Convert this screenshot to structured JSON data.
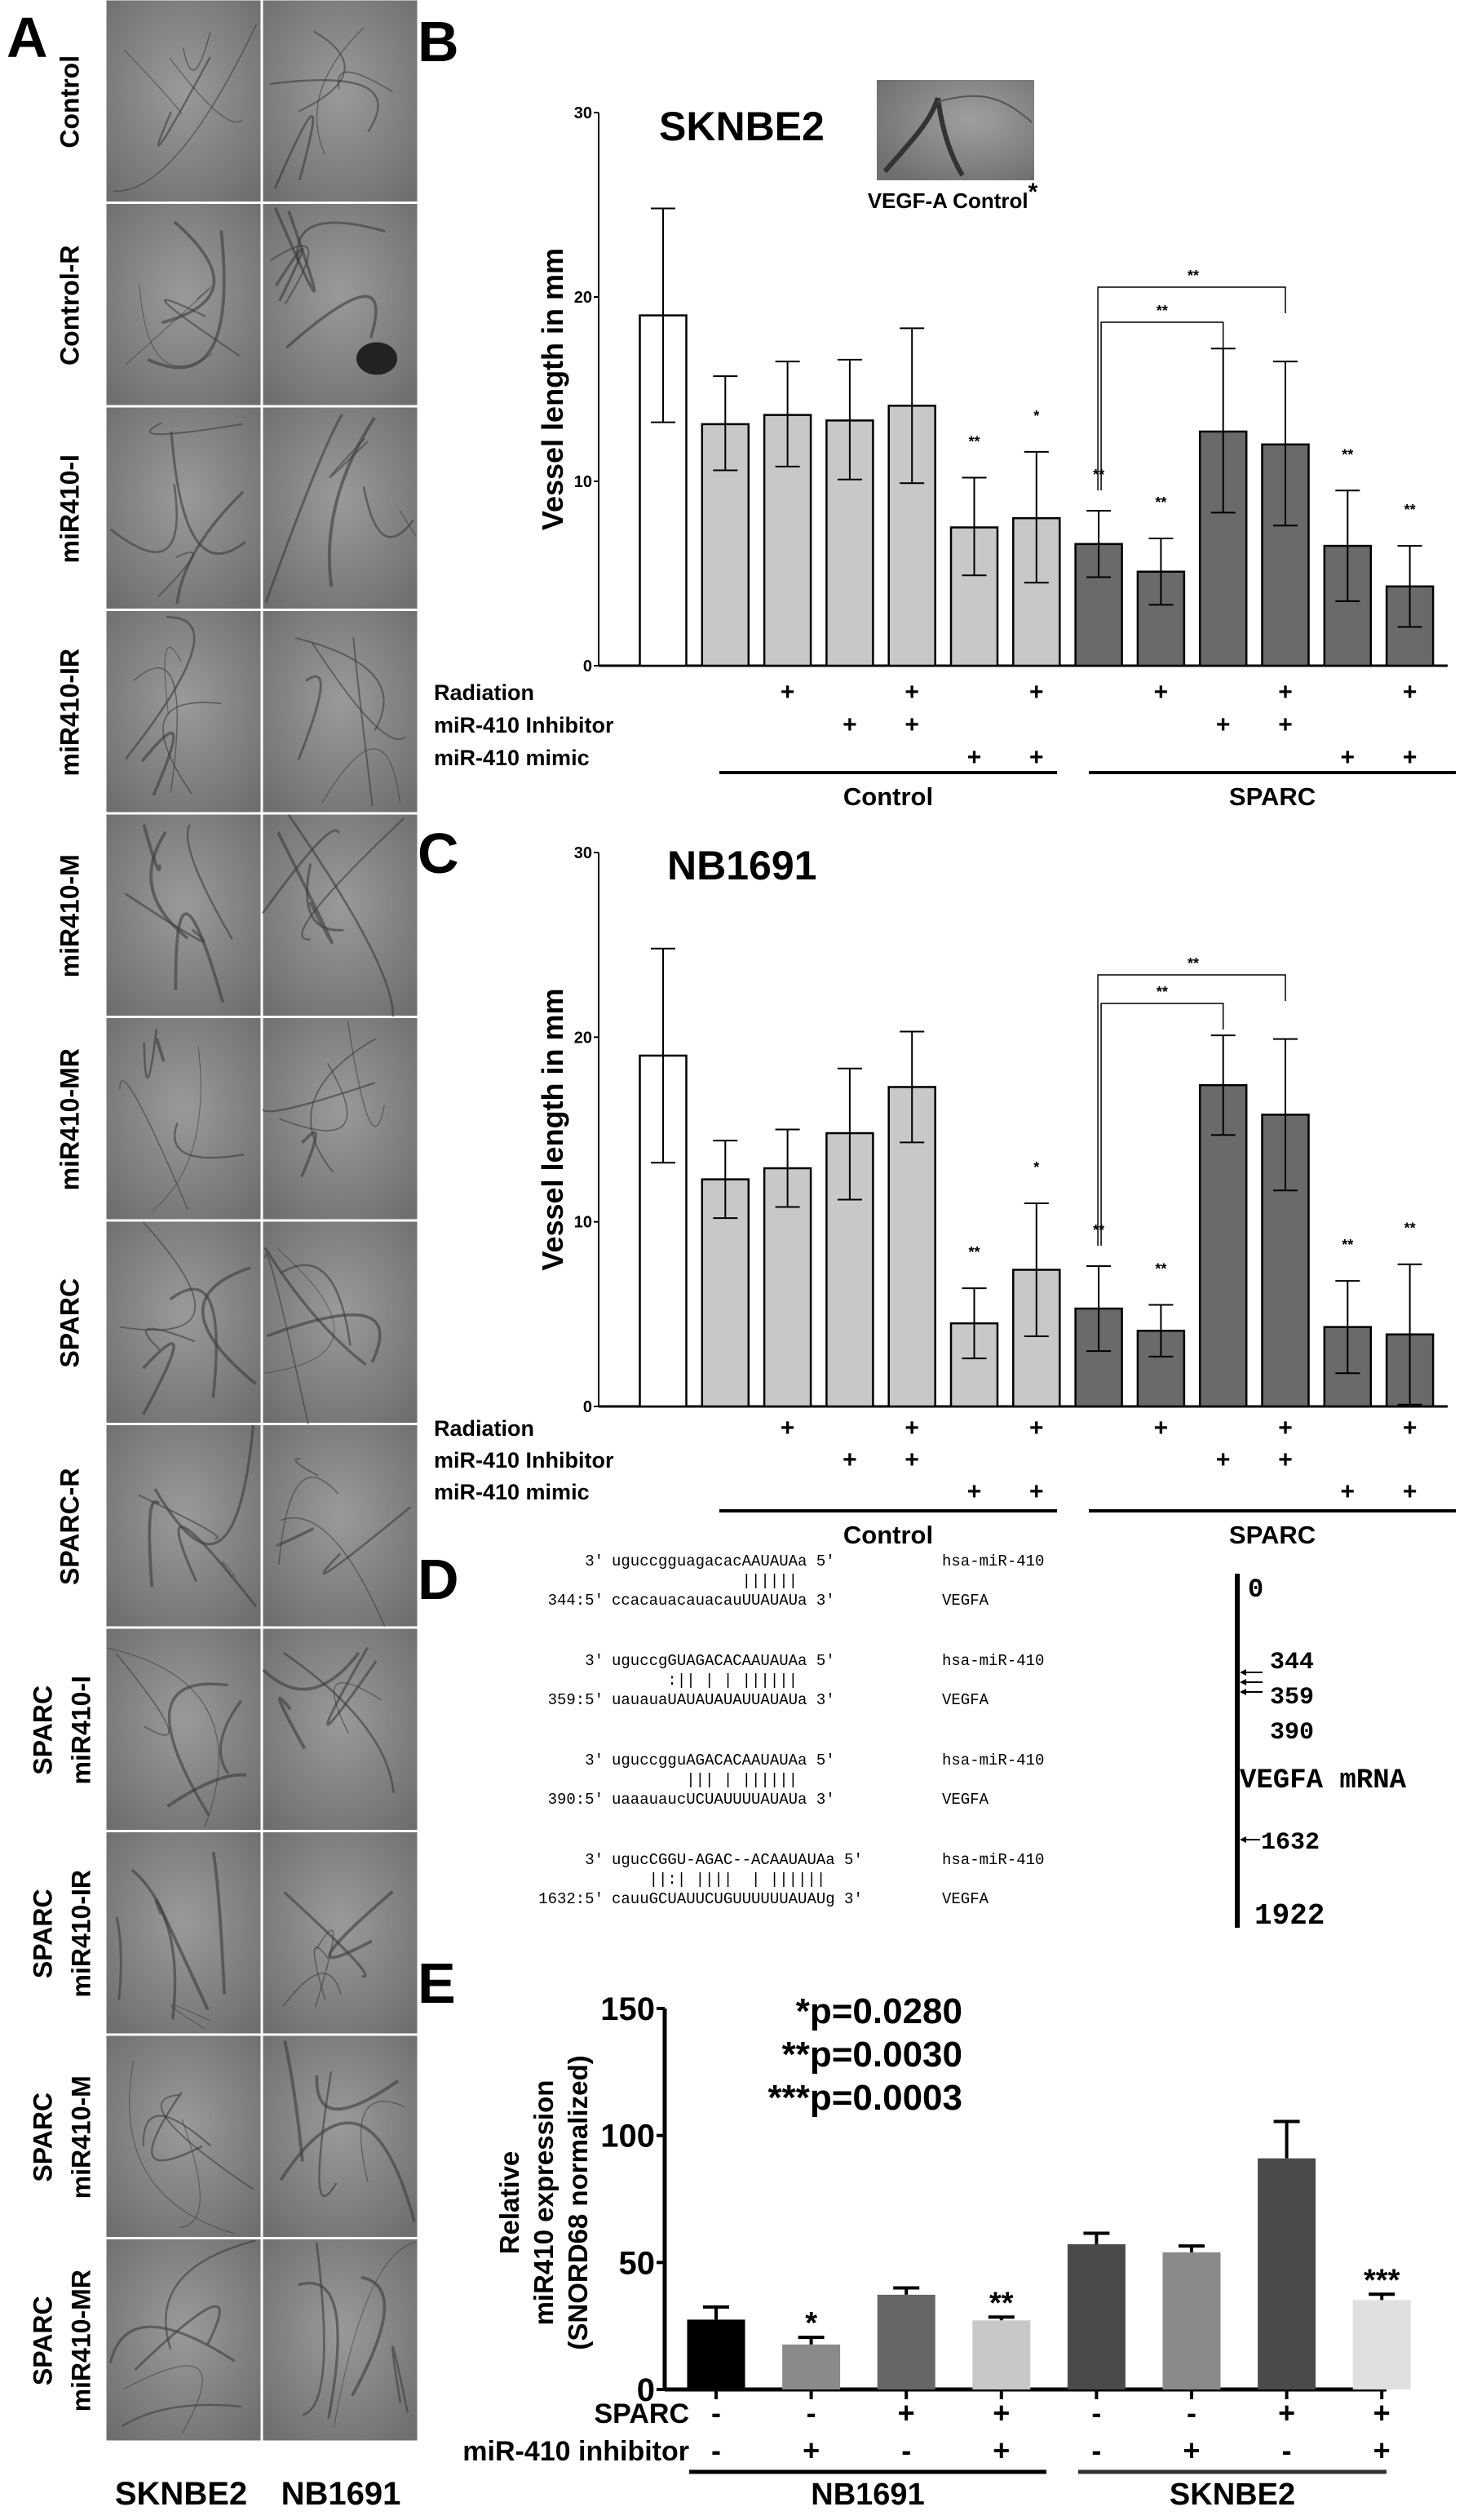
{
  "panel_letters": {
    "a": "A",
    "b": "B",
    "c": "C",
    "d": "D",
    "e": "E"
  },
  "panel_a": {
    "rows": [
      [
        "Control"
      ],
      [
        "Control-R"
      ],
      [
        "miR410-I"
      ],
      [
        "miR410-IR"
      ],
      [
        "miR410-M"
      ],
      [
        "miR410-MR"
      ],
      [
        "SPARC"
      ],
      [
        "SPARC-R"
      ],
      [
        "SPARC",
        "miR410-I"
      ],
      [
        "SPARC",
        "miR410-IR"
      ],
      [
        "SPARC",
        "miR410-M"
      ],
      [
        "SPARC",
        "miR410-MR"
      ]
    ],
    "columns": [
      "SKNBE2",
      "NB1691"
    ]
  },
  "treatment_rows": [
    "Radiation",
    "miR-410 Inhibitor",
    "miR-410 mimic"
  ],
  "groups": [
    "Control",
    "SPARC"
  ],
  "chart_data": [
    {
      "type": "bar",
      "title": "SKNBE2",
      "inset_caption": "VEGF-A Control",
      "inset_mark": "*",
      "ylabel": "Vessel length in mm",
      "ylim": [
        0,
        30
      ],
      "yticks": [
        "0",
        "10",
        "20",
        "30"
      ],
      "values": [
        19.0,
        13.1,
        13.6,
        13.3,
        14.1,
        7.5,
        8.0,
        6.6,
        5.1,
        12.7,
        12.0,
        6.5,
        4.3
      ],
      "err_high": [
        24.8,
        15.7,
        16.5,
        16.6,
        18.3,
        10.2,
        11.6,
        8.4,
        6.9,
        17.2,
        16.5,
        9.5,
        6.5
      ],
      "err_low": [
        13.2,
        10.6,
        10.8,
        10.1,
        9.9,
        4.9,
        4.5,
        4.8,
        3.3,
        8.3,
        7.6,
        3.5,
        2.1
      ],
      "colors": [
        "#ffffff",
        "#c8c8c8",
        "#c8c8c8",
        "#c8c8c8",
        "#c8c8c8",
        "#c8c8c8",
        "#c8c8c8",
        "#6a6a6a",
        "#6a6a6a",
        "#6a6a6a",
        "#6a6a6a",
        "#6a6a6a",
        "#6a6a6a"
      ],
      "significance": [
        "",
        "",
        "",
        "",
        "",
        "**",
        "*",
        "**",
        "**",
        "",
        "",
        "**",
        "**"
      ],
      "radiation": [
        "",
        "",
        "+",
        "",
        "+",
        "",
        "+",
        "",
        "+",
        "",
        "+",
        "",
        "+"
      ],
      "inhibitor": [
        "",
        "",
        "",
        "+",
        "+",
        "",
        "",
        "",
        "",
        "+",
        "+",
        "",
        ""
      ],
      "mimic": [
        "",
        "",
        "",
        "",
        "",
        "+",
        "+",
        "",
        "",
        "",
        "",
        "+",
        "+"
      ],
      "brackets": [
        {
          "from": 7,
          "to": 9,
          "label": "**"
        },
        {
          "from": 7,
          "to": 10,
          "label": "**"
        }
      ]
    },
    {
      "type": "bar",
      "title": "NB1691",
      "ylabel": "Vessel length in mm",
      "ylim": [
        0,
        30
      ],
      "yticks": [
        "0",
        "10",
        "20",
        "30"
      ],
      "values": [
        19.0,
        12.3,
        12.9,
        14.8,
        17.3,
        4.5,
        7.4,
        5.3,
        4.1,
        17.4,
        15.8,
        4.3,
        3.9
      ],
      "err_high": [
        24.8,
        14.4,
        15.0,
        18.3,
        20.3,
        6.4,
        11.0,
        7.6,
        5.5,
        20.1,
        19.9,
        6.8,
        7.7
      ],
      "err_low": [
        13.2,
        10.2,
        10.8,
        11.2,
        14.3,
        2.6,
        3.8,
        3.0,
        2.7,
        14.7,
        11.7,
        1.8,
        0.1
      ],
      "colors": [
        "#ffffff",
        "#c8c8c8",
        "#c8c8c8",
        "#c8c8c8",
        "#c8c8c8",
        "#c8c8c8",
        "#c8c8c8",
        "#6a6a6a",
        "#6a6a6a",
        "#6a6a6a",
        "#6a6a6a",
        "#6a6a6a",
        "#6a6a6a"
      ],
      "significance": [
        "",
        "",
        "",
        "",
        "",
        "**",
        "*",
        "**",
        "**",
        "",
        "",
        "**",
        "**"
      ],
      "radiation": [
        "",
        "",
        "+",
        "",
        "+",
        "",
        "+",
        "",
        "+",
        "",
        "+",
        "",
        "+"
      ],
      "inhibitor": [
        "",
        "",
        "",
        "+",
        "+",
        "",
        "",
        "",
        "",
        "+",
        "+",
        "",
        ""
      ],
      "mimic": [
        "",
        "",
        "",
        "",
        "",
        "+",
        "+",
        "",
        "",
        "",
        "",
        "+",
        "+"
      ],
      "brackets": [
        {
          "from": 7,
          "to": 9,
          "label": "**"
        },
        {
          "from": 7,
          "to": 10,
          "label": "**"
        }
      ]
    },
    {
      "type": "bar",
      "ylabel_lines": [
        "Relative",
        "miR410 expression",
        "(SNORD68 normalized)"
      ],
      "ylim": [
        0,
        150
      ],
      "yticks": [
        "0",
        "50",
        "100",
        "150"
      ],
      "values": [
        27.5,
        17.7,
        37.3,
        27.2,
        57.2,
        54.0,
        91.0,
        35.2
      ],
      "err_high": [
        32.5,
        20.5,
        40.0,
        28.5,
        61.5,
        56.5,
        105.5,
        37.5
      ],
      "colors": [
        "#000000",
        "#8a8a8a",
        "#666666",
        "#c8c8c8",
        "#4a4a4a",
        "#8a8a8a",
        "#4a4a4a",
        "#e0e0e0"
      ],
      "significance": [
        "",
        "*",
        "",
        "**",
        "",
        "",
        "",
        "***"
      ],
      "row_labels": [
        "SPARC",
        "miR-410 inhibitor"
      ],
      "sparc": [
        "-",
        "-",
        "+",
        "+",
        "-",
        "-",
        "+",
        "+"
      ],
      "inhibitor": [
        "-",
        "+",
        "-",
        "+",
        "-",
        "+",
        "-",
        "+"
      ],
      "groups": [
        "NB1691",
        "SKNBE2"
      ],
      "pvalues": [
        "*p=0.0280",
        "**p=0.0030",
        "***p=0.0003"
      ]
    }
  ],
  "panel_d": {
    "alignments": [
      {
        "mir_prefix": "3'",
        "mir_seq": "uguccgguagacacAAUAUAa 5'",
        "mir_name": "hsa-miR-410",
        "pairs": "              ||||||",
        "target_prefix": "344:5'",
        "target_seq": "ccacauacauacauUUAUAUa 3'",
        "target_name": "VEGFA"
      },
      {
        "mir_prefix": "3'",
        "mir_seq": "uguccgGUAGACACAAUAUAa 5'",
        "mir_name": "hsa-miR-410",
        "pairs": "      :|| | | ||||||",
        "target_prefix": "359:5'",
        "target_seq": "uauauaUAUAUAUAUUAUAUa 3'",
        "target_name": "VEGFA"
      },
      {
        "mir_prefix": "3'",
        "mir_seq": "uguccgguAGACACAAUAUAa 5'",
        "mir_name": "hsa-miR-410",
        "pairs": "        ||| | ||||||",
        "target_prefix": "390:5'",
        "target_seq": "uaaauaucUCUAUUUUAUAUa 3'",
        "target_name": "VEGFA"
      },
      {
        "mir_prefix": "3'",
        "mir_seq": "ugucCGGU-AGAC--ACAAUAUAa 5'",
        "mir_name": "hsa-miR-410",
        "pairs": "    ||:| ||||  | ||||||",
        "target_prefix": "1632:5'",
        "target_seq": "cauuGCUAUUCUGUUUUUUAUAUg 3'",
        "target_name": "VEGFA"
      }
    ],
    "map": {
      "start": "0",
      "sites": [
        "344",
        "359",
        "390"
      ],
      "label": "VEGFA mRNA",
      "site4": "1632",
      "end": "1922"
    }
  }
}
